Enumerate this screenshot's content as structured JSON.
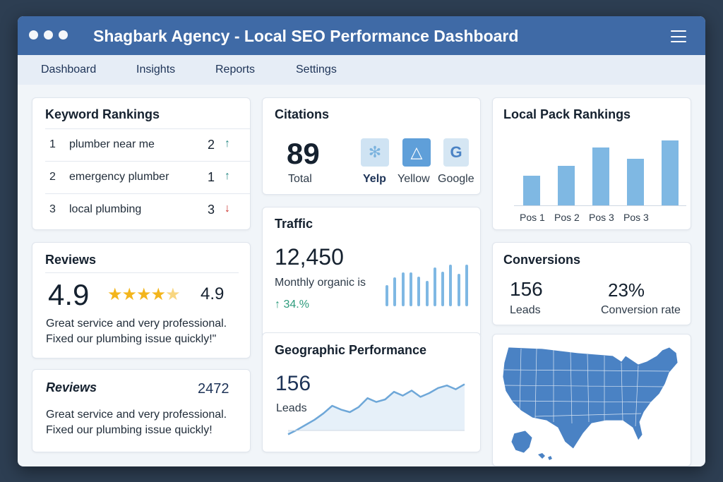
{
  "window": {
    "title": "Shagbark Agency - Local SEO Performance Dashboard"
  },
  "nav": {
    "items": [
      "Dashboard",
      "Insights",
      "Reports",
      "Settings"
    ]
  },
  "keyword_rankings": {
    "title": "Keyword Rankings",
    "rows": [
      {
        "rank": "1",
        "keyword": "plumber near me",
        "position": "2",
        "trend": "up"
      },
      {
        "rank": "2",
        "keyword": "emergency plumber",
        "position": "1",
        "trend": "up"
      },
      {
        "rank": "3",
        "keyword": "local plumbing",
        "position": "3",
        "trend": "down"
      }
    ]
  },
  "citations": {
    "title": "Citations",
    "total_value": "89",
    "total_label": "Total",
    "sources": [
      {
        "name": "Yelp",
        "icon": "yelp-icon",
        "glyph": "✻",
        "color": "#cfe3f3"
      },
      {
        "name": "Yellow",
        "icon": "yellow-pages-icon",
        "glyph": "△",
        "color": "#5f9fd9"
      },
      {
        "name": "Google",
        "icon": "google-icon",
        "glyph": "G",
        "color": "#d5e6f3"
      }
    ]
  },
  "local_pack": {
    "title": "Local Pack Rankings",
    "chart_data": {
      "type": "bar",
      "categories": [
        "Pos 1",
        "Pos 2",
        "Pos 3",
        "Pos 3",
        ""
      ],
      "values": [
        42,
        56,
        82,
        66,
        92
      ],
      "ylim": [
        0,
        100
      ],
      "color": "#7fb8e3"
    }
  },
  "traffic": {
    "title": "Traffic",
    "value": "12,450",
    "label": "Monthly organic  is",
    "change": "↑ 34.%",
    "chart_data": {
      "type": "bar",
      "values": [
        45,
        62,
        72,
        72,
        64,
        54,
        84,
        74,
        90,
        70,
        90
      ],
      "ylim": [
        0,
        100
      ],
      "color": "#7fb8e3"
    }
  },
  "conversions": {
    "title": "Conversions",
    "leads_value": "156",
    "leads_label": "Leads",
    "rate_value": "23%",
    "rate_label": "Conversion rate"
  },
  "reviews_rating": {
    "title": "Reviews",
    "rating": "4.9",
    "stars": 4.5,
    "rating_small": "4.9",
    "quote": "Great service and very professional. Fixed our plumbing issue quickly!\""
  },
  "reviews_count": {
    "title": "Reviews",
    "count": "2472",
    "quote": "Great service and very professional. Fixed our plumbing issue quickly!"
  },
  "geographic": {
    "title": "Geographic Performance",
    "value": "156",
    "label": "Leads",
    "chart_data": {
      "type": "area",
      "values": [
        5,
        12,
        20,
        28,
        38,
        50,
        44,
        40,
        48,
        62,
        56,
        60,
        72,
        66,
        74,
        64,
        70,
        78,
        82,
        76,
        84
      ],
      "ylim": [
        0,
        100
      ],
      "color": "#6ea7d8"
    }
  },
  "map": {
    "region": "United States",
    "color": "#4a82c4"
  }
}
